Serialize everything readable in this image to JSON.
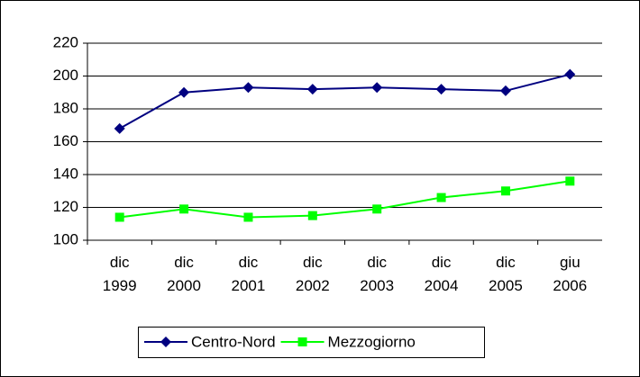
{
  "chart_data": {
    "type": "line",
    "categories": [
      "dic\n1999",
      "dic\n2000",
      "dic\n2001",
      "dic\n2002",
      "dic\n2003",
      "dic\n2004",
      "dic\n2005",
      "giu\n2006"
    ],
    "series": [
      {
        "name": "Centro-Nord",
        "color": "#000080",
        "marker": "diamond",
        "values": [
          168,
          190,
          193,
          192,
          193,
          192,
          191,
          201
        ]
      },
      {
        "name": "Mezzogiorno",
        "color": "#00ff00",
        "marker": "square",
        "values": [
          114,
          119,
          114,
          115,
          119,
          126,
          130,
          136
        ]
      }
    ],
    "ylim": [
      100,
      220
    ],
    "yticks": [
      100,
      120,
      140,
      160,
      180,
      200,
      220
    ],
    "grid": true,
    "legend": "bottom"
  }
}
